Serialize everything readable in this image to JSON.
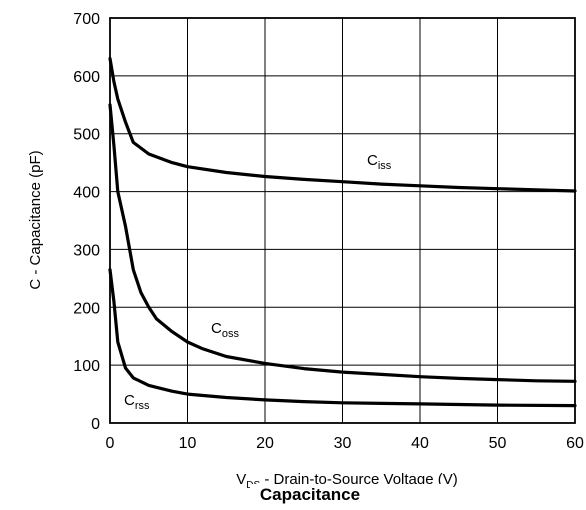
{
  "chart_data": {
    "type": "line",
    "title": "Capacitance",
    "xlabel_main": "V",
    "xlabel_sub": "DS",
    "xlabel_rest": " - Drain-to-Source Voltage (V)",
    "ylabel": "C - Capacitance (pF)",
    "xlim": [
      0,
      60
    ],
    "ylim": [
      0,
      700
    ],
    "xticks": [
      "0",
      "10",
      "20",
      "30",
      "40",
      "50",
      "60"
    ],
    "yticks": [
      "0",
      "100",
      "200",
      "300",
      "400",
      "500",
      "600",
      "700"
    ],
    "grid": true,
    "series": [
      {
        "name_main": "C",
        "name_sub": "iss",
        "x": [
          0,
          0.5,
          1,
          2,
          3,
          5,
          8,
          10,
          15,
          20,
          25,
          30,
          35,
          40,
          45,
          50,
          55,
          60
        ],
        "y": [
          630,
          590,
          560,
          520,
          485,
          465,
          450,
          443,
          433,
          426,
          421,
          417,
          413,
          410,
          407,
          405,
          403,
          401
        ]
      },
      {
        "name_main": "C",
        "name_sub": "oss",
        "x": [
          0,
          0.5,
          1,
          2,
          3,
          4,
          5,
          6,
          8,
          10,
          12,
          15,
          20,
          25,
          30,
          35,
          40,
          45,
          50,
          55,
          60
        ],
        "y": [
          550,
          480,
          400,
          340,
          265,
          225,
          200,
          180,
          158,
          140,
          128,
          115,
          103,
          94,
          88,
          84,
          80,
          77,
          75,
          73,
          72
        ]
      },
      {
        "name_main": "C",
        "name_sub": "rss",
        "x": [
          0,
          0.5,
          1,
          2,
          3,
          5,
          8,
          10,
          15,
          20,
          25,
          30,
          40,
          50,
          60
        ],
        "y": [
          265,
          210,
          140,
          95,
          78,
          65,
          55,
          50,
          44,
          40,
          37,
          35,
          33,
          31,
          30
        ]
      }
    ]
  }
}
